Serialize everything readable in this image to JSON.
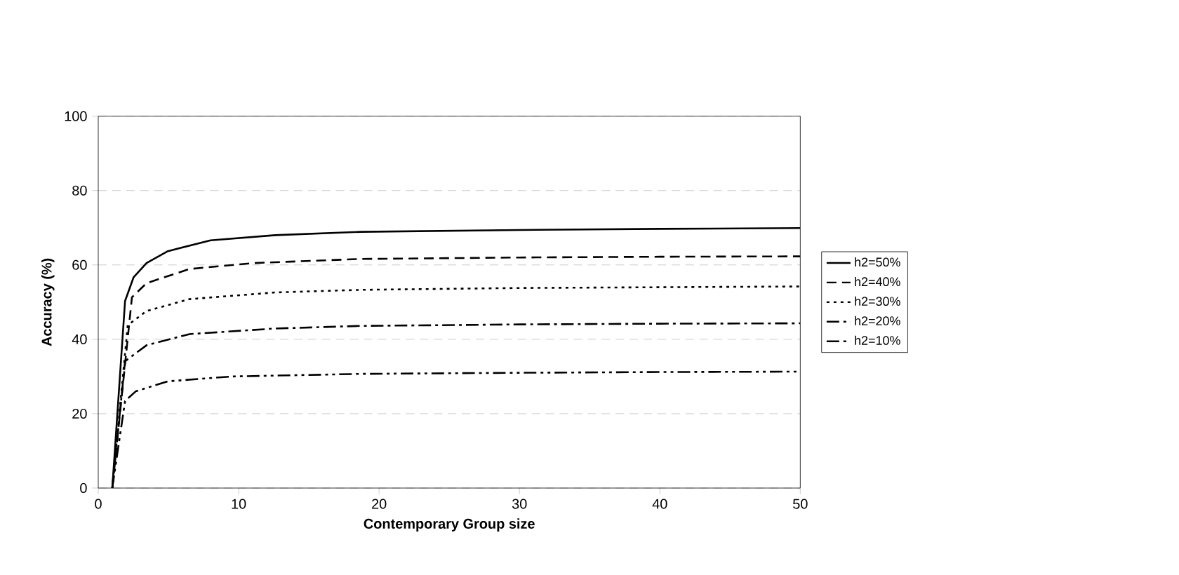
{
  "chart_data": {
    "type": "line",
    "xlabel": "Contemporary Group size",
    "ylabel": "Accuracy (%)",
    "xlim": [
      0,
      50
    ],
    "ylim": [
      0,
      100
    ],
    "xticks": [
      0,
      10,
      20,
      30,
      40,
      50
    ],
    "yticks": [
      0,
      20,
      40,
      60,
      80,
      100
    ],
    "grid": "y",
    "legend": "right",
    "marker": "none",
    "series": [
      {
        "name": "h2=50%",
        "color": "#000000",
        "line_style": "solid",
        "x": [
          1,
          1.91,
          2.52,
          3.44,
          4.96,
          8,
          12.6,
          18.7,
          30,
          40,
          50
        ],
        "values": [
          0,
          50.3,
          56.7,
          60.5,
          63.7,
          66.6,
          68,
          68.9,
          69.4,
          69.7,
          69.9
        ]
      },
      {
        "name": "h2=40%",
        "color": "#000000",
        "line_style": "dashed",
        "x": [
          1,
          2.4,
          3.44,
          6.5,
          11.07,
          18.7,
          30,
          40,
          50
        ],
        "values": [
          0,
          51.3,
          55.1,
          58.9,
          60.5,
          61.6,
          62,
          62.2,
          62.3
        ]
      },
      {
        "name": "h2=30%",
        "color": "#000000",
        "line_style": "dotted",
        "x": [
          1,
          2.1,
          3.44,
          6.5,
          12.6,
          18.7,
          30,
          40,
          50
        ],
        "values": [
          0,
          43.8,
          47.6,
          50.8,
          52.6,
          53.3,
          53.8,
          54,
          54.2
        ]
      },
      {
        "name": "h2=20%",
        "color": "#000000",
        "line_style": "dashdot",
        "x": [
          1,
          1.91,
          3.44,
          6.5,
          12.6,
          18.7,
          30,
          40,
          50
        ],
        "values": [
          0,
          34.1,
          38.4,
          41.4,
          42.9,
          43.6,
          44,
          44.2,
          44.3
        ]
      },
      {
        "name": "h2=10%",
        "color": "#000000",
        "line_style": "dashdotdot",
        "x": [
          1,
          1.91,
          2.67,
          4.96,
          9.5,
          18.7,
          30,
          40,
          50
        ],
        "values": [
          0,
          23.4,
          26,
          28.7,
          30,
          30.7,
          31,
          31.2,
          31.3
        ]
      }
    ]
  }
}
